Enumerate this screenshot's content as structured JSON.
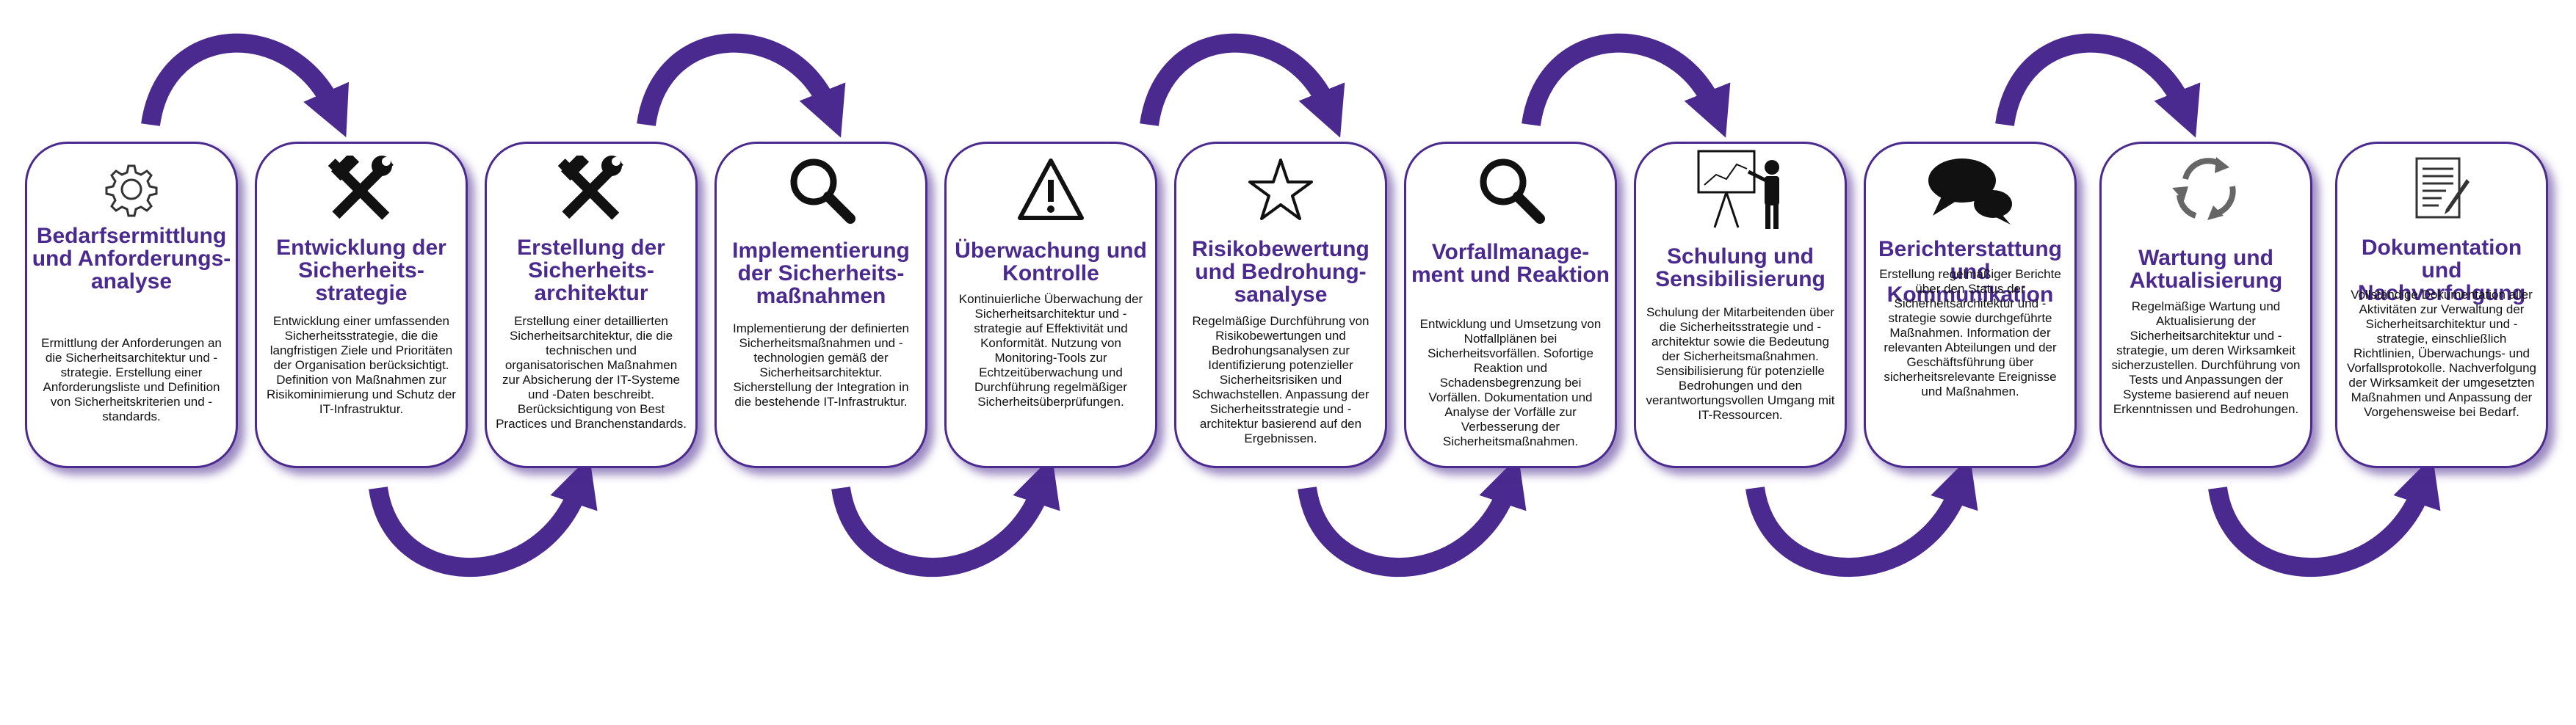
{
  "colors": {
    "accent": "#4b2a8f",
    "text": "#111111"
  },
  "steps": [
    {
      "icon": "gear-icon",
      "title": "Bedarfsermittlung und Anforderungs-analyse",
      "desc": "Ermittlung der Anforderungen an die Sicherheitsarchitektur und -strategie. Erstellung einer Anforderungsliste und Definition von Sicherheitskriterien und -standards."
    },
    {
      "icon": "tools-icon",
      "title": "Entwicklung der Sicherheits-strategie",
      "desc": "Entwicklung einer umfassenden Sicherheitsstrategie, die die langfristigen Ziele und Prioritäten der Organisation berücksichtigt. Definition von Maßnahmen zur Risikominimierung und Schutz der IT-Infrastruktur."
    },
    {
      "icon": "tools-icon",
      "title": "Erstellung der Sicherheits-architektur",
      "desc": "Erstellung einer detaillierten Sicherheitsarchitektur, die die technischen und organisatorischen Maßnahmen zur Absicherung der IT-Systeme und -Daten beschreibt. Berücksichtigung von Best Practices und Branchenstandards."
    },
    {
      "icon": "magnifier-icon",
      "title": "Implementierung der Sicherheits-maßnahmen",
      "desc": "Implementierung der definierten Sicherheitsmaßnahmen und -technologien gemäß der Sicherheitsarchitektur. Sicherstellung der Integration in die bestehende IT-Infrastruktur."
    },
    {
      "icon": "warning-icon",
      "title": "Überwachung und Kontrolle",
      "desc": "Kontinuierliche Überwachung der Sicherheitsarchitektur und -strategie auf Effektivität und Konformität. Nutzung von Monitoring-Tools zur Echtzeitüberwachung und Durchführung regelmäßiger Sicherheitsüberprüfungen."
    },
    {
      "icon": "star-icon",
      "title": "Risikobewertung und Bedrohung-sanalyse",
      "desc": "Regelmäßige Durchführung von Risikobewertungen und Bedrohungsanalysen zur Identifizierung potenzieller Sicherheitsrisiken und Schwachstellen. Anpassung der Sicherheitsstrategie und -architektur basierend auf den Ergebnissen."
    },
    {
      "icon": "magnifier-icon",
      "title": "Vorfallmanage-ment und Reaktion",
      "desc": "Entwicklung und Umsetzung von Notfallplänen bei Sicherheitsvorfällen. Sofortige Reaktion und Schadensbegrenzung bei Vorfällen. Dokumentation und Analyse der Vorfälle zur Verbesserung der Sicherheitsmaßnahmen."
    },
    {
      "icon": "presentation-icon",
      "title": "Schulung und Sensibilisierung",
      "desc": "Schulung der Mitarbeitenden über die Sicherheitsstrategie und -architektur sowie die Bedeutung der Sicherheitsmaßnahmen. Sensibilisierung für potenzielle Bedrohungen und den verantwortungsvollen Umgang mit IT-Ressourcen."
    },
    {
      "icon": "speech-bubbles-icon",
      "title": "Berichterstattung und Kommunikation",
      "desc": "Erstellung regelmäßiger Berichte über den Status der Sicherheitsarchitektur und -strategie sowie durchgeführte Maßnahmen. Information der relevanten Abteilungen und der Geschäftsführung über sicherheitsrelevante Ereignisse und Maßnahmen."
    },
    {
      "icon": "recycle-icon",
      "title": "Wartung und Aktualisierung",
      "desc": "Regelmäßige Wartung und Aktualisierung der Sicherheitsarchitektur und -strategie, um deren Wirksamkeit sicherzustellen. Durchführung von Tests und Anpassungen der Systeme basierend auf neuen Erkenntnissen und Bedrohungen."
    },
    {
      "icon": "document-icon",
      "title": "Dokumentation und Nachverfolgung",
      "desc": "Vollständige Dokumentation aller Aktivitäten zur Verwaltung der Sicherheitsarchitektur und -strategie, einschließlich Richtlinien, Überwachungs- und Vorfallsprotokolle. Nachverfolgung der Wirksamkeit der umgesetzten Maßnahmen und Anpassung der Vorgehensweise bei Bedarf."
    }
  ]
}
